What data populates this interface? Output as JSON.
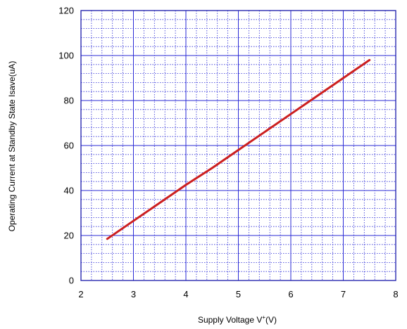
{
  "chart_data": {
    "type": "line",
    "xlabel": {
      "prefix": "Supply Voltage  V",
      "superscript": "+",
      "suffix": "(V)"
    },
    "ylabel": "Operating Current at Standby State  Isave(uA)",
    "xlim": [
      2,
      8
    ],
    "ylim": [
      0,
      120
    ],
    "x_ticks": [
      2,
      3,
      4,
      5,
      6,
      7,
      8
    ],
    "y_ticks": [
      0,
      20,
      40,
      60,
      80,
      100,
      120
    ],
    "x_minor_step": 0.2,
    "y_minor_step": 4,
    "grid": true,
    "series": [
      {
        "color": "#cc1f1f",
        "x": [
          2.5,
          3.0,
          3.5,
          4.0,
          4.5,
          5.0,
          5.5,
          6.0,
          6.5,
          7.0,
          7.5
        ],
        "y": [
          18.5,
          26.5,
          34.5,
          42.5,
          50.0,
          58.0,
          66.0,
          74.0,
          82.0,
          90.0,
          98.0
        ]
      }
    ],
    "colors": {
      "grid": "#2b2bd6",
      "frame": "#1a1aaa"
    }
  }
}
